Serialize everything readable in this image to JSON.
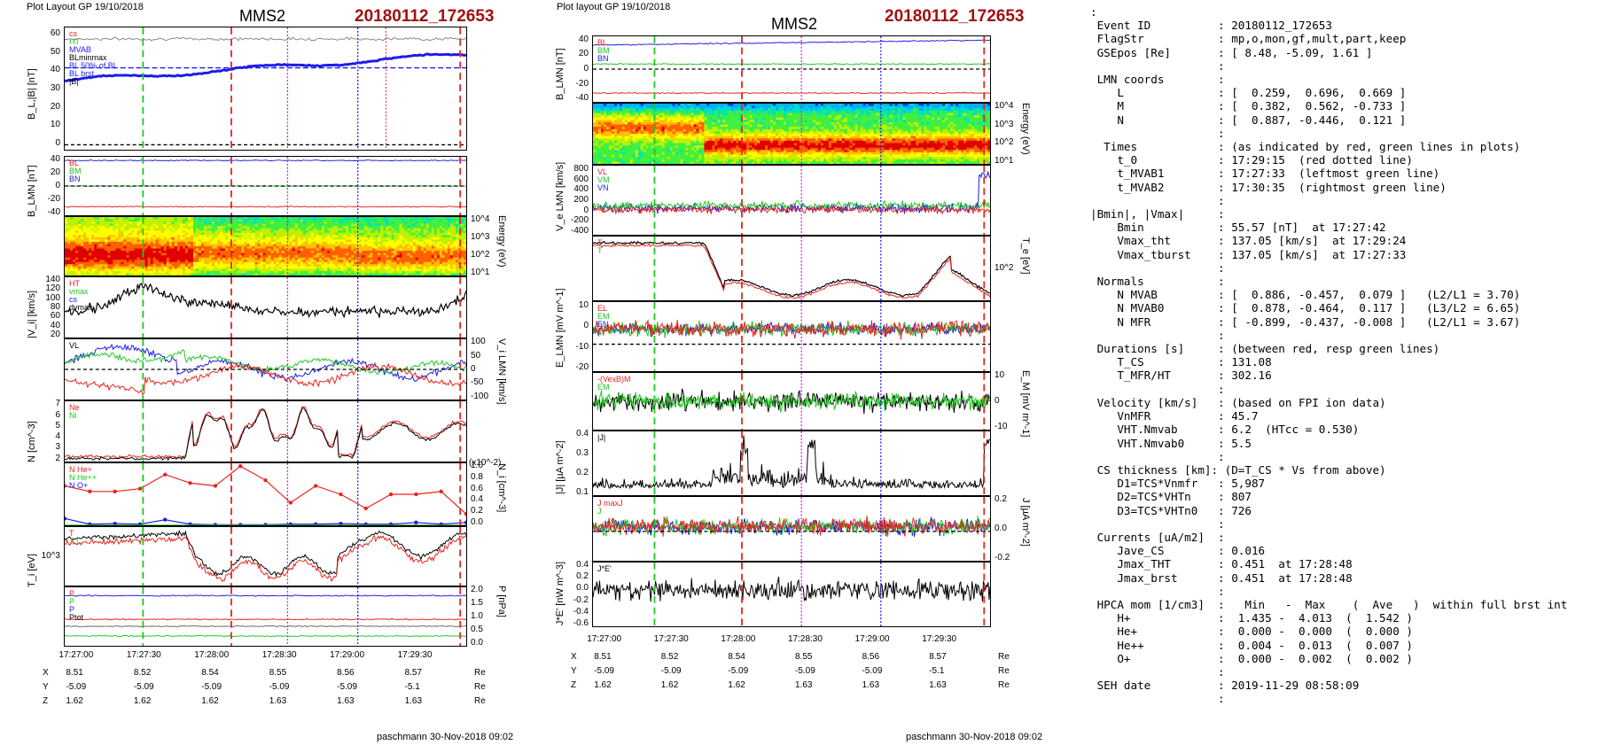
{
  "meta": {
    "layout_left": "Plot Layout GP 19/10/2018",
    "layout_right": "Plot layout GP 19/10/2018",
    "spacecraft": "MMS2",
    "event": "20180112_172653",
    "footer": "paschmann 30-Nov-2018 09:02"
  },
  "colors": {
    "red": "#e8231c",
    "green": "#1ec81e",
    "blue": "#1c1ce8",
    "black": "#000000",
    "magenta": "#d020d0",
    "event": "#a01010"
  },
  "chart_data": [
    {
      "type": "line",
      "title": "MMS2 20180112_172653 (left column)",
      "x_ticks": [
        "17:27:00",
        "17:27:30",
        "17:28:00",
        "17:28:30",
        "17:29:00",
        "17:29:30"
      ],
      "ephemeris": {
        "rows": [
          {
            "label": "X",
            "values": [
              "8.51",
              "8.52",
              "8.54",
              "8.55",
              "8.56",
              "8.57"
            ],
            "unit": "Re"
          },
          {
            "label": "Y",
            "values": [
              "-5.09",
              "-5.09",
              "-5.09",
              "-5.09",
              "-5.09",
              "-5.1"
            ],
            "unit": "Re"
          },
          {
            "label": "Z",
            "values": [
              "1.62",
              "1.62",
              "1.62",
              "1.63",
              "1.63",
              "1.63"
            ],
            "unit": "Re"
          }
        ]
      },
      "panels": [
        {
          "ylabel": "B_L,|B| [nT]",
          "yticks": [
            "60",
            "50",
            "40",
            "30",
            "20",
            "10",
            "0"
          ],
          "legend": [
            "cs",
            "HT",
            "MVAB",
            "BLminmax",
            "BL 50% of BL",
            "BL brst",
            "|B|"
          ]
        },
        {
          "ylabel": "B_LMN [nT]",
          "yticks": [
            "40",
            "20",
            "0",
            "-20",
            "-40"
          ],
          "legend": [
            "BL",
            "BM",
            "BN"
          ]
        },
        {
          "ylabel": "Energy (eV)",
          "yticks": [
            "10^4",
            "10^3",
            "10^2",
            "10^1"
          ],
          "type": "heatmap"
        },
        {
          "ylabel": "|V_i| [km/s]",
          "yticks": [
            "140",
            "120",
            "100",
            "80",
            "60",
            "40",
            "20"
          ],
          "legend": [
            "HT",
            "vmax",
            "cs",
            "dvmax"
          ]
        },
        {
          "ylabel": "V_i LMN [km/s]",
          "yticks": [
            "100",
            "50",
            "0",
            "-50",
            "-100"
          ],
          "legend": [
            "VL"
          ]
        },
        {
          "ylabel": "N [cm^-3]",
          "yticks": [
            "7",
            "6",
            "5",
            "4",
            "3",
            "2"
          ],
          "legend": [
            "Ne",
            "Ni"
          ]
        },
        {
          "ylabel": "N_i [cm^-3]",
          "yticks": [
            "1.0",
            "0.8",
            "0.6",
            "0.4",
            "0.2",
            "0.0"
          ],
          "scale_note": "(x10^-2)",
          "legend": [
            "N He+",
            "N He++",
            "N O+"
          ]
        },
        {
          "ylabel": "T_i [eV]",
          "yticks": [
            "10^3"
          ],
          "legend": [
            "T",
            "T⊥"
          ]
        },
        {
          "ylabel": "P [nPa]",
          "yticks": [
            "2.0",
            "1.5",
            "1.0",
            "0.5",
            "0.0"
          ],
          "legend": [
            "P",
            "P",
            "P",
            "Ptot"
          ]
        }
      ]
    },
    {
      "type": "line",
      "title": "MMS2 20180112_172653 (right column)",
      "x_ticks": [
        "17:27:00",
        "17:27:30",
        "17:28:00",
        "17:28:30",
        "17:29:00",
        "17:29:30"
      ],
      "ephemeris": {
        "rows": [
          {
            "label": "X",
            "values": [
              "8.51",
              "8.52",
              "8.54",
              "8.55",
              "8.56",
              "8.57"
            ],
            "unit": "Re"
          },
          {
            "label": "Y",
            "values": [
              "-5.09",
              "-5.09",
              "-5.09",
              "-5.09",
              "-5.09",
              "-5.1"
            ],
            "unit": "Re"
          },
          {
            "label": "Z",
            "values": [
              "1.62",
              "1.62",
              "1.62",
              "1.63",
              "1.63",
              "1.63"
            ],
            "unit": "Re"
          }
        ]
      },
      "panels": [
        {
          "ylabel": "B_LMN [nT]",
          "yticks": [
            "40",
            "20",
            "0",
            "-20",
            "-40"
          ],
          "legend": [
            "BL",
            "BM",
            "BN"
          ]
        },
        {
          "ylabel": "Energy (eV)",
          "yticks": [
            "10^4",
            "10^3",
            "10^2",
            "10^1"
          ],
          "type": "heatmap"
        },
        {
          "ylabel": "V_e LMN [km/s]",
          "yticks": [
            "800",
            "600",
            "400",
            "200",
            "0",
            "-200",
            "-400"
          ],
          "legend": [
            "VL",
            "VM",
            "VN"
          ]
        },
        {
          "ylabel": "T_e [eV]",
          "yticks": [
            "10^2"
          ],
          "legend": [
            "T",
            "T"
          ]
        },
        {
          "ylabel": "E_LMN [mV m^-1]",
          "yticks": [
            "10",
            "0",
            "-10",
            "-20"
          ],
          "legend": [
            "EL",
            "EM",
            "EN"
          ]
        },
        {
          "ylabel": "E_M [mV m^-1]",
          "yticks": [
            "10",
            "0",
            "-10"
          ],
          "legend": [
            "-(VexB)M",
            "EM"
          ]
        },
        {
          "ylabel": "|J| [µA m^-2]",
          "yticks": [
            "0.4",
            "0.3",
            "0.2",
            "0.1"
          ],
          "legend": [
            "|J|"
          ]
        },
        {
          "ylabel": "J [µA m^-2]",
          "yticks": [
            "0.2",
            "0.0",
            "-0.2"
          ],
          "legend": [
            "J maxJ",
            "J"
          ]
        },
        {
          "ylabel": "J*E' [nW m^-3]",
          "yticks": [
            "0.4",
            "0.2",
            "0.0",
            "-0.2",
            "-0.4",
            "-0.6"
          ],
          "legend": [
            "J*E'"
          ]
        }
      ]
    }
  ],
  "info_lines": [
    ":",
    " Event ID          : 20180112_172653",
    " FlagStr           : mp,o,mon,gf,mult,part,keep",
    " GSEpos [Re]       : [ 8.48, -5.09, 1.61 ]",
    "                   :",
    " LMN coords        :",
    "    L              : [  0.259,  0.696,  0.669 ]",
    "    M              : [  0.382,  0.562, -0.733 ]",
    "    N              : [  0.887, -0.446,  0.121 ]",
    "                   :",
    "  Times            : (as indicated by red, green lines in plots)",
    "    t_0            : 17:29:15  (red dotted line)",
    "    t_MVAB1        : 17:27:33  (leftmost green line)",
    "    t_MVAB2        : 17:30:35  (rightmost green line)",
    "                   :",
    "|Bmin|, |Vmax|     :",
    "    Bmin           : 55.57 [nT]  at 17:27:42",
    "    Vmax_tht       : 137.05 [km/s]  at 17:29:24",
    "    Vmax_tburst    : 137.05 [km/s]  at 17:27:33",
    "                   :",
    " Normals           :",
    "    N MVAB         : [  0.886, -0.457,  0.079 ]   (L2/L1 = 3.70)",
    "    N MVAB0        : [  0.878, -0.464,  0.117 ]   (L3/L2 = 6.65)",
    "    N MFR          : [ -0.899, -0.437, -0.008 ]   (L2/L1 = 3.67)",
    "                   :",
    " Durations [s]     : (between red, resp green lines)",
    "    T_CS           : 131.08",
    "    T_MFR/HT       : 302.16",
    "                   :",
    " Velocity [km/s]   : (based on FPI ion data)",
    "    VnMFR          : 45.7",
    "    VHT.Nmvab      : 6.2  (HTcc = 0.530)",
    "    VHT.Nmvab0     : 5.5",
    "                   :",
    " CS thickness [km]: (D=T_CS * Vs from above)",
    "    D1=TCS*Vnmfr   : 5,987",
    "    D2=TCS*VHTn    : 807",
    "    D3=TCS*VHTn0   : 726",
    "                   :",
    " Currents [uA/m2]  :",
    "    Jave_CS        : 0.016",
    "    Jmax_THT       : 0.451  at 17:28:48",
    "    Jmax_brst      : 0.451  at 17:28:48",
    "                   :",
    " HPCA mom [1/cm3]  :   Min   -  Max    (  Ave   )  within full brst int",
    "    H+             :  1.435 -  4.013  (  1.542 )",
    "    He+            :  0.000 -  0.000  (  0.000 )",
    "    He++           :  0.004 -  0.013  (  0.007 )",
    "    O+             :  0.000 -  0.002  (  0.002 )",
    "                   :",
    " SEH date          : 2019-11-29 08:58:09",
    "                   :"
  ]
}
